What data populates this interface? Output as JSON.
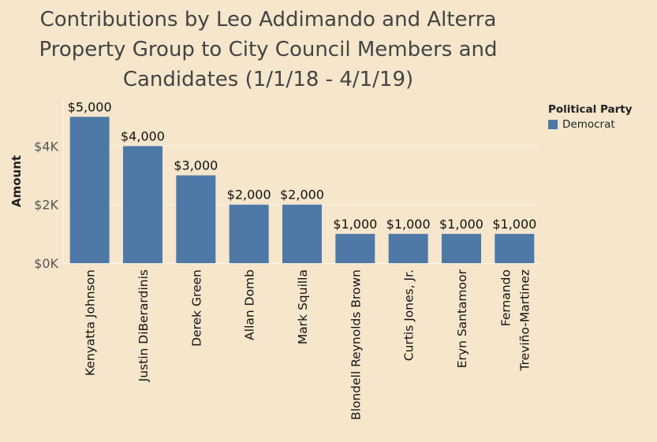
{
  "chart_data": {
    "type": "bar",
    "title_lines": [
      "Contributions by Leo Addimando and Alterra",
      "Property Group to City Council Members and",
      "Candidates (1/1/18 - 4/1/19)"
    ],
    "xlabel": "",
    "ylabel": "Amount",
    "ylim": [
      0,
      5600
    ],
    "yticks": [
      {
        "value": 0,
        "label": "$0K"
      },
      {
        "value": 2000,
        "label": "$2K"
      },
      {
        "value": 4000,
        "label": "$4K"
      }
    ],
    "categories": [
      [
        "Kenyatta Johnson"
      ],
      [
        "Justin DiBerardinis"
      ],
      [
        "Derek Green"
      ],
      [
        "Allan Domb"
      ],
      [
        "Mark Squilla"
      ],
      [
        "Blondell Reynolds Brown"
      ],
      [
        "Curtis Jones, Jr."
      ],
      [
        "Eryn Santamoor"
      ],
      [
        "Fernando",
        "Treviño-Martinez"
      ]
    ],
    "series": [
      {
        "name": "Democrat",
        "color": "#4e79a7",
        "values": [
          5000,
          4000,
          3000,
          2000,
          2000,
          1000,
          1000,
          1000,
          1000
        ],
        "labels": [
          "$5,000",
          "$4,000",
          "$3,000",
          "$2,000",
          "$2,000",
          "$1,000",
          "$1,000",
          "$1,000",
          "$1,000"
        ]
      }
    ],
    "grid": "horizontal",
    "legend": {
      "title": "Political Party",
      "position": "top-right"
    }
  }
}
